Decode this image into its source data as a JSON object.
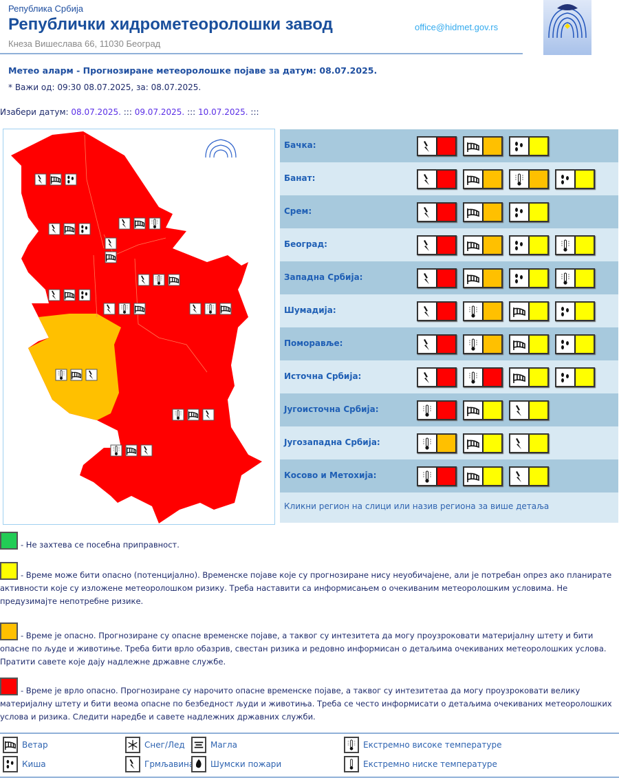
{
  "header": {
    "subtitle": "Република Србија",
    "title": "Републички хидрометеоролошки завод",
    "address": "Кнеза Вишеслава 66, 11030 Београд",
    "email": "office@hidmet.gov.rs"
  },
  "alarm_title": "Метео аларм - Прогнозиране метеоролошке појаве за датум:  08.07.2025.",
  "valid_text": "* Важи од: 09:30 08.07.2025, за: 08.07.2025.",
  "date_picker": {
    "label": "Изабери датум:",
    "dates": [
      "08.07.2025.",
      "09.07.2025.",
      "10.07.2025."
    ],
    "separator": ":::"
  },
  "colors": {
    "red": "#ff0000",
    "orange": "#ffc000",
    "yellow": "#ffff00",
    "green": "#22cc55"
  },
  "regions": [
    {
      "name": "Бачка:",
      "warnings": [
        [
          "lightning",
          "red"
        ],
        [
          "wind",
          "orange"
        ],
        [
          "rain",
          "yellow"
        ]
      ]
    },
    {
      "name": "Банат:",
      "warnings": [
        [
          "lightning",
          "red"
        ],
        [
          "wind",
          "orange"
        ],
        [
          "heat",
          "orange"
        ],
        [
          "rain",
          "yellow"
        ]
      ]
    },
    {
      "name": "Срем:",
      "warnings": [
        [
          "lightning",
          "red"
        ],
        [
          "wind",
          "orange"
        ],
        [
          "rain",
          "yellow"
        ]
      ]
    },
    {
      "name": "Београд:",
      "warnings": [
        [
          "lightning",
          "red"
        ],
        [
          "wind",
          "orange"
        ],
        [
          "rain",
          "yellow"
        ],
        [
          "heat",
          "yellow"
        ]
      ]
    },
    {
      "name": "Западна Србија:",
      "warnings": [
        [
          "lightning",
          "red"
        ],
        [
          "wind",
          "orange"
        ],
        [
          "rain",
          "yellow"
        ],
        [
          "heat",
          "yellow"
        ]
      ]
    },
    {
      "name": "Шумадија:",
      "warnings": [
        [
          "lightning",
          "red"
        ],
        [
          "heat",
          "orange"
        ],
        [
          "wind",
          "yellow"
        ],
        [
          "rain",
          "yellow"
        ]
      ]
    },
    {
      "name": "Поморавље:",
      "warnings": [
        [
          "lightning",
          "red"
        ],
        [
          "heat",
          "orange"
        ],
        [
          "wind",
          "yellow"
        ],
        [
          "rain",
          "yellow"
        ]
      ]
    },
    {
      "name": "Источна Србија:",
      "warnings": [
        [
          "lightning",
          "red"
        ],
        [
          "heat",
          "red"
        ],
        [
          "wind",
          "yellow"
        ],
        [
          "rain",
          "yellow"
        ]
      ]
    },
    {
      "name": "Југоисточна Србија:",
      "warnings": [
        [
          "heat",
          "red"
        ],
        [
          "wind",
          "yellow"
        ],
        [
          "lightning",
          "yellow"
        ]
      ]
    },
    {
      "name": "Југозападна Србија:",
      "warnings": [
        [
          "heat",
          "orange"
        ],
        [
          "wind",
          "yellow"
        ],
        [
          "lightning",
          "yellow"
        ]
      ]
    },
    {
      "name": "Косово и Метохија:",
      "warnings": [
        [
          "heat",
          "red"
        ],
        [
          "wind",
          "yellow"
        ],
        [
          "lightning",
          "yellow"
        ]
      ]
    }
  ],
  "table_note": "Кликни регион на слици или назив региона за више детаља",
  "levels": [
    {
      "color": "green",
      "text": "- Не захтева се посебна приправност."
    },
    {
      "color": "yellow",
      "text": "- Време може бити опасно (потенцијално). Временске појаве које су прогнозиране нису неуобичајене, али је потребан опрез ако планирате активности које су изложене метеоролошком ризику. Треба наставити са информисањем о очекиваним метеоролошким условима. Не предузимајте непотребне ризике."
    },
    {
      "color": "orange",
      "text": "- Време је опасно. Прогнозиране су опасне временске појаве, а таквог су интезитета да могу проузроковати материјалну штету и бити опасне по људе и животиње. Треба бити врло обазрив, свестан ризика и редовно информисан о детаљима очекиваних метеоролошких услова. Пратити савете које дају надлежне државне службе."
    },
    {
      "color": "red",
      "text": "- Време је врло опасно. Прогнозиране су нарочито опасне временске појаве, а таквог су интезитетаа да могу проузроковати велику материјалну штету и бити веома опасне по безбедност људи и животиња. Треба се често информисати о детаљима очекиваних метеоролошких услова и ризика. Следити наредбе и савете надлежних државних служби."
    }
  ],
  "legend": [
    {
      "icon": "wind",
      "label": "Ветар"
    },
    {
      "icon": "snow",
      "label": "Снег/Лед"
    },
    {
      "icon": "fog",
      "label": "Магла"
    },
    {
      "icon": "heat",
      "label": "Екстремно високе температуре"
    },
    {
      "icon": "rain",
      "label": "Киша"
    },
    {
      "icon": "lightning",
      "label": "Грмљавина"
    },
    {
      "icon": "fire",
      "label": "Шумски пожари"
    },
    {
      "icon": "cold",
      "label": "Екстремно ниске температуре"
    }
  ],
  "map": {
    "region_colors": {
      "south_west": "orange",
      "others": "red"
    },
    "markers": [
      {
        "region": "Бачка",
        "icons": [
          "lightning",
          "wind",
          "rain"
        ]
      },
      {
        "region": "Банат",
        "icons": [
          "lightning",
          "wind",
          "heat"
        ]
      },
      {
        "region": "Срем",
        "icons": [
          "lightning",
          "wind",
          "rain"
        ]
      },
      {
        "region": "Београд",
        "icons": [
          "lightning",
          "wind"
        ]
      },
      {
        "region": "Шумадија",
        "icons": [
          "lightning",
          "heat",
          "wind"
        ]
      },
      {
        "region": "Западна Србија",
        "icons": [
          "lightning",
          "wind",
          "rain"
        ]
      },
      {
        "region": "Поморавље",
        "icons": [
          "lightning",
          "heat",
          "wind"
        ]
      },
      {
        "region": "Источна Србија",
        "icons": [
          "lightning",
          "heat",
          "wind"
        ]
      },
      {
        "region": "Југозападна Србија",
        "icons": [
          "heat",
          "wind",
          "lightning"
        ]
      },
      {
        "region": "Југоисточна Србија",
        "icons": [
          "heat",
          "wind",
          "lightning"
        ]
      },
      {
        "region": "Косово и Метохија",
        "icons": [
          "heat",
          "wind",
          "lightning"
        ]
      }
    ]
  }
}
